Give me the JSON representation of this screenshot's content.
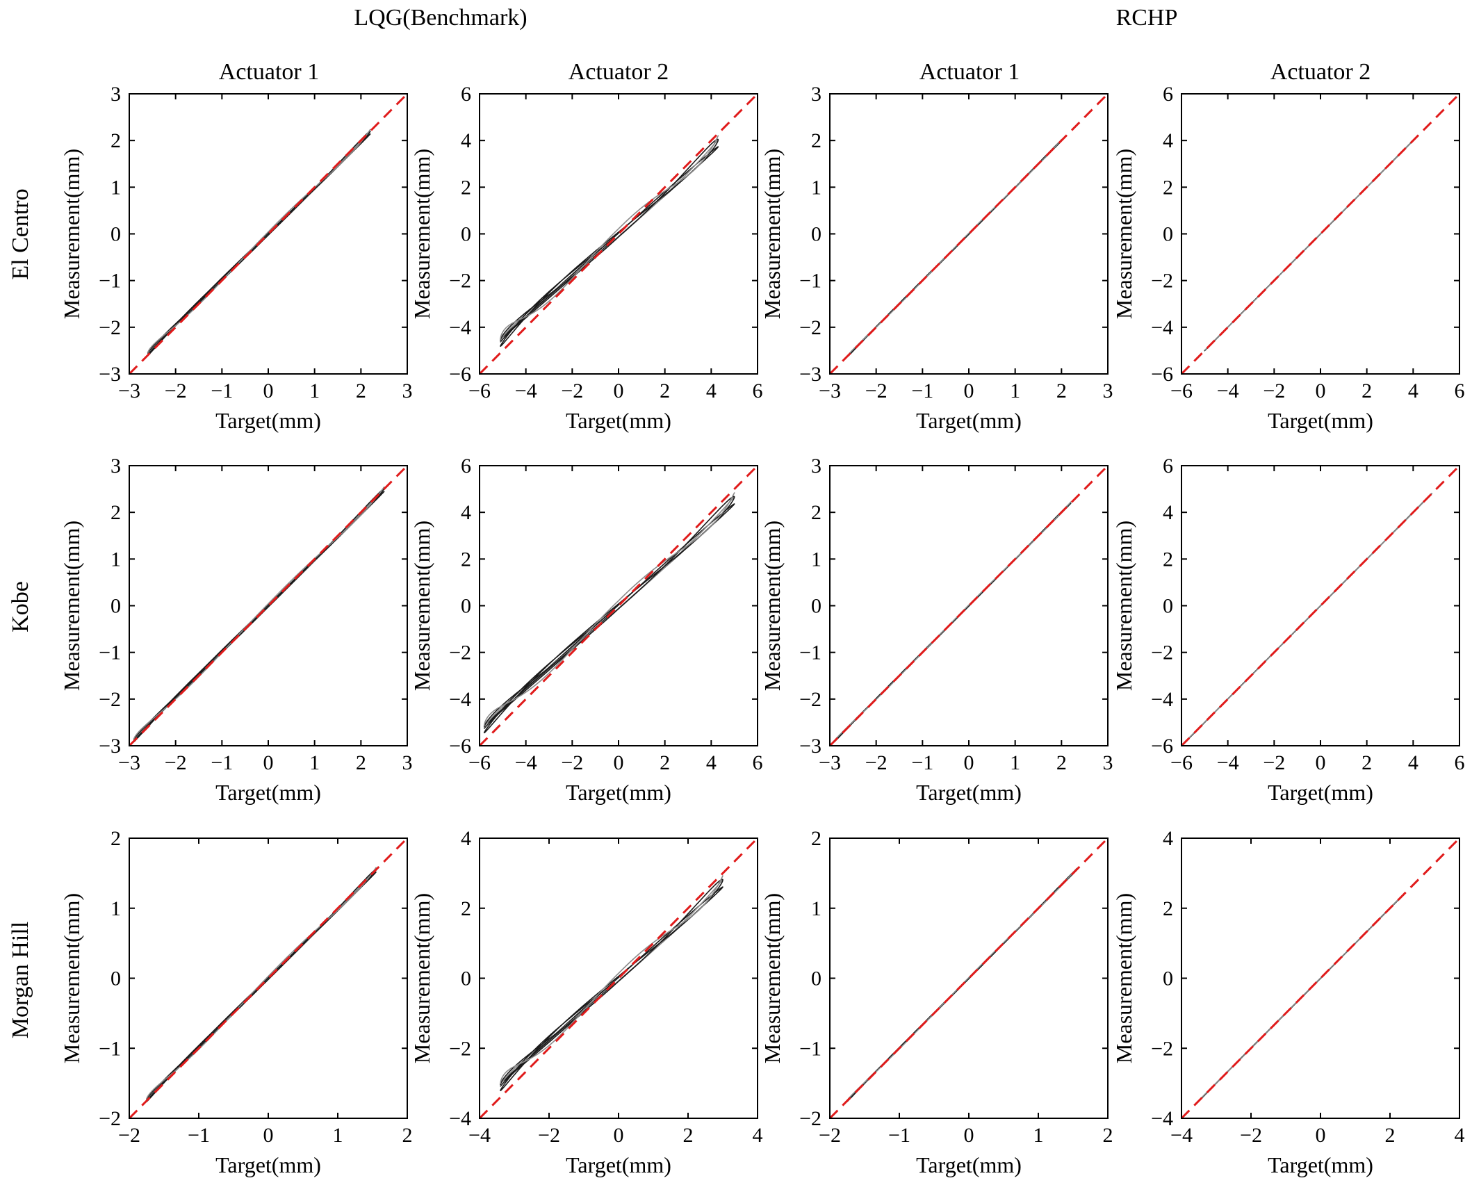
{
  "figure": {
    "group_titles": [
      "LQG(Benchmark)",
      "RCHP"
    ],
    "column_titles": [
      "Actuator 1",
      "Actuator 2",
      "Actuator 1",
      "Actuator 2"
    ],
    "row_labels": [
      "El Centro",
      "Kobe",
      "Morgan Hill"
    ],
    "x_label": "Target(mm)",
    "y_label": "Measurement(mm)"
  },
  "colors": {
    "reference_line": "#e01b1b",
    "measurement_line": "#1a1a1a",
    "measurement_line_light": "#8a8a8a"
  },
  "chart_data": [
    {
      "type": "line",
      "row": 0,
      "col": 0,
      "earthquake": "El Centro",
      "controller": "LQG(Benchmark)",
      "actuator": "Actuator 1",
      "xlim": [
        -3,
        3
      ],
      "ylim": [
        -3,
        3
      ],
      "ticks": [
        -3,
        -2,
        -1,
        0,
        1,
        2,
        3
      ],
      "target_range": [
        -2.6,
        2.2
      ],
      "slope": 0.985,
      "spread": 0.06,
      "reference": "dashed y=x",
      "grid": false
    },
    {
      "type": "line",
      "row": 0,
      "col": 1,
      "earthquake": "El Centro",
      "controller": "LQG(Benchmark)",
      "actuator": "Actuator 2",
      "xlim": [
        -6,
        6
      ],
      "ylim": [
        -6,
        6
      ],
      "ticks": [
        -6,
        -4,
        -2,
        0,
        2,
        4,
        6
      ],
      "target_range": [
        -5.1,
        4.3
      ],
      "slope": 0.9,
      "spread": 0.3,
      "reference": "dashed y=x",
      "grid": false
    },
    {
      "type": "line",
      "row": 0,
      "col": 2,
      "earthquake": "El Centro",
      "controller": "RCHP",
      "actuator": "Actuator 1",
      "xlim": [
        -3,
        3
      ],
      "ylim": [
        -3,
        3
      ],
      "ticks": [
        -3,
        -2,
        -1,
        0,
        1,
        2,
        3
      ],
      "target_range": [
        -2.6,
        2.0
      ],
      "slope": 1.0,
      "spread": 0.02,
      "reference": "dashed y=x",
      "grid": false
    },
    {
      "type": "line",
      "row": 0,
      "col": 3,
      "earthquake": "El Centro",
      "controller": "RCHP",
      "actuator": "Actuator 2",
      "xlim": [
        -6,
        6
      ],
      "ylim": [
        -6,
        6
      ],
      "ticks": [
        -6,
        -4,
        -2,
        0,
        2,
        4,
        6
      ],
      "target_range": [
        -5.0,
        4.0
      ],
      "slope": 1.0,
      "spread": 0.01,
      "reference": "dashed y=x",
      "grid": false
    },
    {
      "type": "line",
      "row": 1,
      "col": 0,
      "earthquake": "Kobe",
      "controller": "LQG(Benchmark)",
      "actuator": "Actuator 1",
      "xlim": [
        -3,
        3
      ],
      "ylim": [
        -3,
        3
      ],
      "ticks": [
        -3,
        -2,
        -1,
        0,
        1,
        2,
        3
      ],
      "target_range": [
        -2.9,
        2.5
      ],
      "slope": 0.99,
      "spread": 0.06,
      "reference": "dashed y=x",
      "grid": false
    },
    {
      "type": "line",
      "row": 1,
      "col": 1,
      "earthquake": "Kobe",
      "controller": "LQG(Benchmark)",
      "actuator": "Actuator 2",
      "xlim": [
        -6,
        6
      ],
      "ylim": [
        -6,
        6
      ],
      "ticks": [
        -6,
        -4,
        -2,
        0,
        2,
        4,
        6
      ],
      "target_range": [
        -5.8,
        5.0
      ],
      "slope": 0.9,
      "spread": 0.3,
      "reference": "dashed y=x",
      "grid": false
    },
    {
      "type": "line",
      "row": 1,
      "col": 2,
      "earthquake": "Kobe",
      "controller": "RCHP",
      "actuator": "Actuator 1",
      "xlim": [
        -3,
        3
      ],
      "ylim": [
        -3,
        3
      ],
      "ticks": [
        -3,
        -2,
        -1,
        0,
        1,
        2,
        3
      ],
      "target_range": [
        -2.9,
        2.2
      ],
      "slope": 1.0,
      "spread": 0.02,
      "reference": "dashed y=x",
      "grid": false
    },
    {
      "type": "line",
      "row": 1,
      "col": 3,
      "earthquake": "Kobe",
      "controller": "RCHP",
      "actuator": "Actuator 2",
      "xlim": [
        -6,
        6
      ],
      "ylim": [
        -6,
        6
      ],
      "ticks": [
        -6,
        -4,
        -2,
        0,
        2,
        4,
        6
      ],
      "target_range": [
        -5.8,
        4.8
      ],
      "slope": 1.0,
      "spread": 0.01,
      "reference": "dashed y=x",
      "grid": false
    },
    {
      "type": "line",
      "row": 2,
      "col": 0,
      "earthquake": "Morgan Hill",
      "controller": "LQG(Benchmark)",
      "actuator": "Actuator 1",
      "xlim": [
        -2,
        2
      ],
      "ylim": [
        -2,
        2
      ],
      "ticks": [
        -2,
        -1,
        0,
        1,
        2
      ],
      "target_range": [
        -1.75,
        1.55
      ],
      "slope": 0.99,
      "spread": 0.04,
      "reference": "dashed y=x",
      "grid": false
    },
    {
      "type": "line",
      "row": 2,
      "col": 1,
      "earthquake": "Morgan Hill",
      "controller": "LQG(Benchmark)",
      "actuator": "Actuator 2",
      "xlim": [
        -4,
        4
      ],
      "ylim": [
        -4,
        4
      ],
      "ticks": [
        -4,
        -2,
        0,
        2,
        4
      ],
      "target_range": [
        -3.4,
        3.0
      ],
      "slope": 0.9,
      "spread": 0.2,
      "reference": "dashed y=x",
      "grid": false
    },
    {
      "type": "line",
      "row": 2,
      "col": 2,
      "earthquake": "Morgan Hill",
      "controller": "RCHP",
      "actuator": "Actuator 1",
      "xlim": [
        -2,
        2
      ],
      "ylim": [
        -2,
        2
      ],
      "ticks": [
        -2,
        -1,
        0,
        1,
        2
      ],
      "target_range": [
        -1.75,
        1.55
      ],
      "slope": 1.0,
      "spread": 0.015,
      "reference": "dashed y=x",
      "grid": false
    },
    {
      "type": "line",
      "row": 2,
      "col": 3,
      "earthquake": "Morgan Hill",
      "controller": "RCHP",
      "actuator": "Actuator 2",
      "xlim": [
        -4,
        4
      ],
      "ylim": [
        -4,
        4
      ],
      "ticks": [
        -4,
        -2,
        0,
        2,
        4
      ],
      "target_range": [
        -3.5,
        2.3
      ],
      "slope": 1.0,
      "spread": 0.01,
      "reference": "dashed y=x",
      "grid": false
    }
  ]
}
